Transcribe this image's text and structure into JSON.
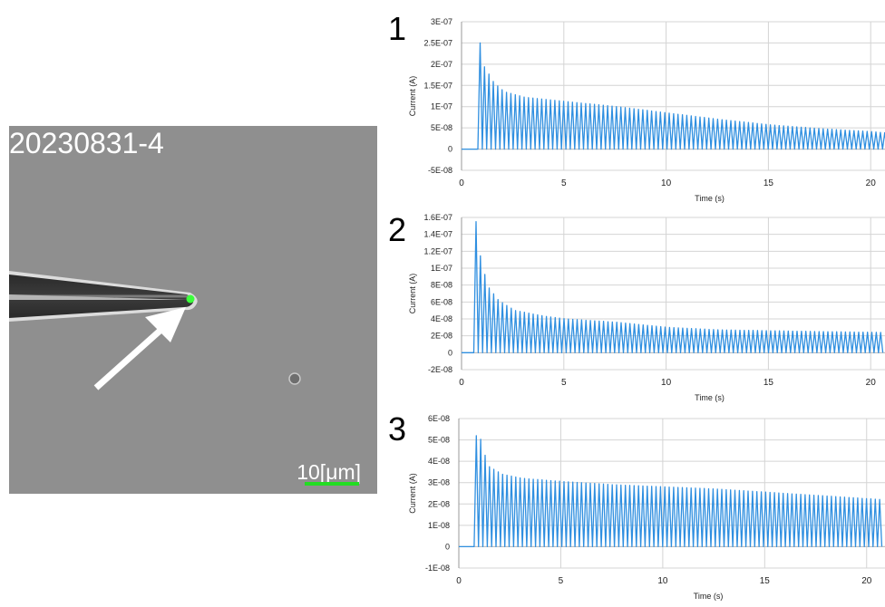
{
  "image": {
    "sample_label": "20230831-4",
    "scale_bar_label": "10[μm]",
    "scale_bar_color": "#22dd22",
    "marker_color": "#3cff3c",
    "arrow_color": "#ffffff"
  },
  "line_color": "#2f8fe0",
  "chart_data": [
    {
      "panel": "1",
      "type": "line",
      "xlabel": "Time (s)",
      "ylabel": "Current (A)",
      "xlim": [
        0,
        20.7
      ],
      "ylim": [
        -5e-08,
        3e-07
      ],
      "xticks": [
        0,
        5,
        10,
        15,
        20
      ],
      "yticks": [
        3e-07,
        2.5e-07,
        2e-07,
        1.5e-07,
        1e-07,
        5e-08,
        0,
        -5e-08
      ],
      "ytick_labels": [
        "3E-07",
        "2.5E-07",
        "2E-07",
        "1.5E-07",
        "1E-07",
        "5E-08",
        "0",
        "-5E-08"
      ],
      "grid": true,
      "pulses": {
        "start": 0.8,
        "end": 20.7,
        "period": 0.215,
        "peak_envelope": [
          [
            0.8,
            2.5e-07
          ],
          [
            1.0,
            1.95e-07
          ],
          [
            1.5,
            1.55e-07
          ],
          [
            2.0,
            1.35e-07
          ],
          [
            3.0,
            1.22e-07
          ],
          [
            5.0,
            1.12e-07
          ],
          [
            7.5,
            1e-07
          ],
          [
            10.0,
            8.5e-08
          ],
          [
            12.5,
            7e-08
          ],
          [
            15.0,
            5.7e-08
          ],
          [
            17.5,
            4.8e-08
          ],
          [
            20.0,
            4.1e-08
          ],
          [
            20.7,
            3.8e-08
          ]
        ]
      }
    },
    {
      "panel": "2",
      "type": "line",
      "xlabel": "Time (s)",
      "ylabel": "Current (A)",
      "xlim": [
        0,
        20.7
      ],
      "ylim": [
        -2e-08,
        1.6e-07
      ],
      "xticks": [
        0,
        5,
        10,
        15,
        20
      ],
      "yticks": [
        1.6e-07,
        1.4e-07,
        1.2e-07,
        1e-07,
        8e-08,
        6e-08,
        4e-08,
        2e-08,
        0,
        -2e-08
      ],
      "ytick_labels": [
        "1.6E-07",
        "1.4E-07",
        "1.2E-07",
        "1E-07",
        "8E-08",
        "6E-08",
        "4E-08",
        "2E-08",
        "0",
        "-2E-08"
      ],
      "grid": true,
      "pulses": {
        "start": 0.6,
        "end": 20.5,
        "period": 0.215,
        "peak_envelope": [
          [
            0.6,
            1.55e-07
          ],
          [
            0.85,
            1.08e-07
          ],
          [
            1.2,
            7.8e-08
          ],
          [
            1.7,
            6.2e-08
          ],
          [
            2.5,
            5e-08
          ],
          [
            4.0,
            4.3e-08
          ],
          [
            5.0,
            4e-08
          ],
          [
            7.5,
            3.6e-08
          ],
          [
            10.0,
            3e-08
          ],
          [
            12.5,
            2.7e-08
          ],
          [
            15.0,
            2.6e-08
          ],
          [
            17.5,
            2.5e-08
          ],
          [
            20.5,
            2.4e-08
          ]
        ]
      }
    },
    {
      "panel": "3",
      "type": "line",
      "xlabel": "Time (s)",
      "ylabel": "Current (A)",
      "xlim": [
        0,
        20.9
      ],
      "ylim": [
        -1e-08,
        6e-08
      ],
      "xticks": [
        0,
        5,
        10,
        15,
        20
      ],
      "yticks": [
        6e-08,
        5e-08,
        4e-08,
        3e-08,
        2e-08,
        1e-08,
        0,
        -1e-08
      ],
      "ytick_labels": [
        "6E-08",
        "5E-08",
        "4E-08",
        "3E-08",
        "2E-08",
        "1E-08",
        "0",
        "-1E-08"
      ],
      "grid": true,
      "pulses": {
        "start": 0.75,
        "end": 20.7,
        "period": 0.215,
        "peak_envelope": [
          [
            0.75,
            5.2e-08
          ],
          [
            1.0,
            5e-08
          ],
          [
            1.3,
            3.8e-08
          ],
          [
            2.0,
            3.4e-08
          ],
          [
            3.0,
            3.2e-08
          ],
          [
            5.0,
            3.05e-08
          ],
          [
            7.5,
            2.9e-08
          ],
          [
            10.0,
            2.8e-08
          ],
          [
            12.5,
            2.7e-08
          ],
          [
            15.0,
            2.55e-08
          ],
          [
            17.5,
            2.4e-08
          ],
          [
            20.7,
            2.2e-08
          ]
        ]
      }
    }
  ]
}
